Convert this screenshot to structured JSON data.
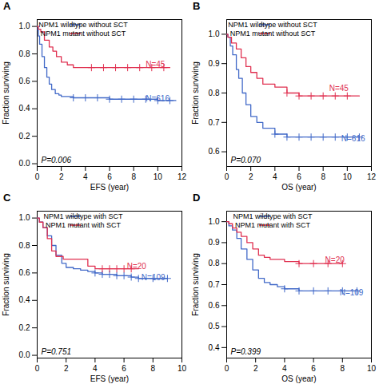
{
  "chart_data": [
    {
      "type": "step",
      "title": "A",
      "xlabel": "EFS (year)",
      "ylabel": "Fraction surviving",
      "xlim": [
        0,
        12
      ],
      "ylim": [
        -0.02,
        1.05
      ],
      "xticks": [
        0,
        2,
        4,
        6,
        8,
        10,
        12
      ],
      "yticks": [
        {
          "value": 0.0,
          "label": "0.0"
        },
        0.2,
        0.4,
        0.6,
        0.8,
        {
          "value": 1.0,
          "label": "1.0"
        }
      ],
      "grid": false,
      "legend": "upper right",
      "series": [
        {
          "name": "NPM1 wildtype without SCT",
          "color": "#4169c8",
          "marker": "+",
          "x": [
            0,
            0.05,
            0.1,
            0.2,
            0.4,
            0.6,
            0.8,
            1.0,
            1.2,
            1.5,
            1.8,
            2.0,
            2.2,
            2.5,
            3.0,
            4.0,
            5.0,
            6.0,
            7.0,
            8.0,
            9.0,
            10.0,
            11.0,
            11.5
          ],
          "values": [
            1.0,
            0.97,
            0.93,
            0.87,
            0.78,
            0.7,
            0.63,
            0.58,
            0.54,
            0.51,
            0.5,
            0.49,
            0.49,
            0.49,
            0.48,
            0.48,
            0.48,
            0.47,
            0.47,
            0.47,
            0.47,
            0.46,
            0.46,
            0.46
          ],
          "censor_x": [
            3.0,
            4.0,
            5.0,
            6.0,
            7.0,
            8.0,
            9.0,
            10.0,
            11.0
          ],
          "censor_values": [
            0.48,
            0.48,
            0.48,
            0.47,
            0.47,
            0.47,
            0.47,
            0.46,
            0.46
          ]
        },
        {
          "name": "NPM1 mutant without SCT",
          "color": "#e03050",
          "marker": "+",
          "x": [
            0,
            0.1,
            0.3,
            0.6,
            1.0,
            1.3,
            1.6,
            2.0,
            2.5,
            3.0,
            3.5,
            4.5,
            5.5,
            6.5,
            7.5,
            8.5,
            9.5,
            10.5,
            11.0
          ],
          "values": [
            1.0,
            0.98,
            0.96,
            0.9,
            0.85,
            0.82,
            0.78,
            0.74,
            0.72,
            0.7,
            0.7,
            0.7,
            0.7,
            0.7,
            0.7,
            0.7,
            0.7,
            0.7,
            0.7
          ],
          "censor_x": [
            4.5,
            5.5,
            6.5,
            7.5,
            8.5,
            9.5,
            10.5
          ],
          "censor_values": [
            0.7,
            0.7,
            0.7,
            0.7,
            0.7,
            0.7,
            0.7
          ]
        }
      ],
      "annotations": [
        {
          "text": "N=45",
          "x": 9.0,
          "y": 0.72,
          "color": "#e03050"
        },
        {
          "text": "N=616",
          "x": 9.0,
          "y": 0.47,
          "color": "#4169c8"
        },
        {
          "text": "P=0.006",
          "position": "bottom left"
        }
      ]
    },
    {
      "type": "step",
      "title": "B",
      "xlabel": "OS (year)",
      "ylabel": "Fraction surviving",
      "xlim": [
        0,
        12
      ],
      "ylim": [
        0.55,
        1.05
      ],
      "xticks": [
        0,
        2,
        4,
        6,
        8,
        10,
        12
      ],
      "yticks": [
        0.6,
        0.7,
        0.8,
        0.9,
        {
          "value": 1.0,
          "label": "1.0"
        }
      ],
      "grid": false,
      "legend": "upper right",
      "series": [
        {
          "name": "NPM1 wildtype without SCT",
          "color": "#4169c8",
          "marker": "+",
          "x": [
            0,
            0.1,
            0.3,
            0.5,
            0.8,
            1.0,
            1.3,
            1.6,
            2.0,
            2.5,
            3.0,
            4.0,
            5.0,
            6.0,
            7.0,
            8.0,
            9.0,
            10.0,
            11.0
          ],
          "values": [
            1.0,
            0.99,
            0.96,
            0.93,
            0.88,
            0.85,
            0.8,
            0.76,
            0.72,
            0.7,
            0.68,
            0.66,
            0.65,
            0.65,
            0.65,
            0.65,
            0.65,
            0.65,
            0.65
          ],
          "censor_x": [
            4.0,
            5.0,
            6.0,
            7.0,
            8.0,
            9.0,
            10.0,
            11.0
          ],
          "censor_values": [
            0.66,
            0.65,
            0.65,
            0.65,
            0.65,
            0.65,
            0.65,
            0.65
          ]
        },
        {
          "name": "NPM1 mutant without SCT",
          "color": "#e03050",
          "marker": "+",
          "x": [
            0,
            0.1,
            0.4,
            0.8,
            1.2,
            1.6,
            2.0,
            2.5,
            3.0,
            4.0,
            5.0,
            6.0,
            7.0,
            8.0,
            9.0,
            10.0,
            11.0
          ],
          "values": [
            1.0,
            0.99,
            0.97,
            0.95,
            0.92,
            0.89,
            0.87,
            0.85,
            0.83,
            0.82,
            0.8,
            0.79,
            0.79,
            0.79,
            0.79,
            0.79,
            0.79
          ],
          "censor_x": [
            5.0,
            6.0,
            7.0,
            8.0,
            9.0,
            10.0
          ],
          "censor_values": [
            0.8,
            0.79,
            0.79,
            0.79,
            0.79,
            0.79
          ]
        }
      ],
      "annotations": [
        {
          "text": "N=45",
          "x": 8.5,
          "y": 0.815,
          "color": "#e03050"
        },
        {
          "text": "N=616",
          "x": 9.5,
          "y": 0.645,
          "color": "#4169c8"
        },
        {
          "text": "P=0.070",
          "position": "bottom left"
        }
      ]
    },
    {
      "type": "step",
      "title": "C",
      "xlabel": "EFS (year)",
      "ylabel": "Fraction surviving",
      "xlim": [
        0,
        10
      ],
      "ylim": [
        -0.02,
        1.05
      ],
      "xticks": [
        0,
        2,
        4,
        6,
        8,
        10
      ],
      "yticks": [
        {
          "value": 0.0,
          "label": "0.0"
        },
        0.2,
        0.4,
        0.6,
        0.8,
        {
          "value": 1.0,
          "label": "1.0"
        }
      ],
      "grid": false,
      "legend": "upper right",
      "series": [
        {
          "name": "NPM1 wildtype with SCT",
          "color": "#4169c8",
          "marker": "+",
          "x": [
            0,
            0.15,
            0.4,
            0.7,
            1.0,
            1.3,
            1.7,
            2.0,
            2.5,
            3.0,
            3.5,
            4.0,
            4.5,
            5.0,
            5.5,
            6.0,
            6.5,
            7.0,
            7.5,
            8.0,
            9.0
          ],
          "values": [
            1.0,
            0.97,
            0.93,
            0.87,
            0.8,
            0.73,
            0.67,
            0.64,
            0.63,
            0.62,
            0.61,
            0.6,
            0.59,
            0.59,
            0.58,
            0.58,
            0.57,
            0.56,
            0.56,
            0.56,
            0.56
          ],
          "censor_x": [
            4.0,
            4.5,
            5.0,
            5.5,
            6.0,
            6.5,
            7.0,
            8.0,
            9.0
          ],
          "censor_values": [
            0.6,
            0.59,
            0.59,
            0.58,
            0.58,
            0.57,
            0.56,
            0.56,
            0.56
          ]
        },
        {
          "name": "NPM1 mutant with SCT",
          "color": "#e03050",
          "marker": "+",
          "x": [
            0,
            0.15,
            0.4,
            0.7,
            1.0,
            1.3,
            1.8,
            2.5,
            3.5,
            4.0,
            4.5,
            5.0,
            5.5,
            6.0,
            6.5,
            7.0
          ],
          "values": [
            1.0,
            0.97,
            0.93,
            0.85,
            0.76,
            0.72,
            0.7,
            0.7,
            0.65,
            0.63,
            0.63,
            0.63,
            0.63,
            0.63,
            0.63,
            0.63
          ],
          "censor_x": [
            4.5,
            5.0,
            5.5,
            6.0,
            6.5
          ],
          "censor_values": [
            0.63,
            0.63,
            0.63,
            0.63,
            0.63
          ]
        }
      ],
      "annotations": [
        {
          "text": "N=20",
          "x": 6.2,
          "y": 0.645,
          "color": "#e03050"
        },
        {
          "text": "N=109",
          "x": 7.2,
          "y": 0.565,
          "color": "#4169c8"
        },
        {
          "text": "P=0.751",
          "position": "bottom left"
        }
      ]
    },
    {
      "type": "step",
      "title": "D",
      "xlabel": "OS (year)",
      "ylabel": "Fraction surviving",
      "xlim": [
        0,
        10
      ],
      "ylim": [
        0.35,
        1.05
      ],
      "xticks": [
        0,
        2,
        4,
        6,
        8,
        10
      ],
      "yticks": [
        0.4,
        0.5,
        0.6,
        0.7,
        0.8,
        0.9,
        {
          "value": 1.0,
          "label": "1.0"
        }
      ],
      "grid": false,
      "legend": "upper right",
      "series": [
        {
          "name": "NPM1 wildtype with SCT",
          "color": "#4169c8",
          "marker": "+",
          "x": [
            0,
            0.15,
            0.4,
            0.7,
            1.0,
            1.4,
            1.8,
            2.2,
            2.6,
            3.0,
            3.5,
            4.0,
            5.0,
            6.0,
            7.0,
            8.0,
            9.0
          ],
          "values": [
            1.0,
            0.98,
            0.96,
            0.92,
            0.87,
            0.82,
            0.77,
            0.73,
            0.71,
            0.7,
            0.69,
            0.68,
            0.67,
            0.67,
            0.67,
            0.67,
            0.67
          ],
          "censor_x": [
            4.0,
            5.0,
            6.0,
            7.0,
            8.0,
            9.0
          ],
          "censor_values": [
            0.68,
            0.67,
            0.67,
            0.67,
            0.67,
            0.67
          ]
        },
        {
          "name": "NPM1 mutant with SCT",
          "color": "#e03050",
          "marker": "+",
          "x": [
            0,
            0.15,
            0.4,
            0.7,
            1.0,
            1.4,
            1.8,
            2.2,
            2.6,
            3.0,
            4.0,
            5.0,
            6.0,
            7.0,
            8.0
          ],
          "values": [
            1.0,
            0.99,
            0.97,
            0.95,
            0.93,
            0.9,
            0.87,
            0.84,
            0.83,
            0.82,
            0.81,
            0.8,
            0.8,
            0.8,
            0.8
          ],
          "censor_x": [
            5.0,
            6.0,
            7.0,
            8.0
          ],
          "censor_values": [
            0.8,
            0.8,
            0.8,
            0.8
          ]
        }
      ],
      "annotations": [
        {
          "text": "N=20",
          "x": 6.8,
          "y": 0.815,
          "color": "#e03050"
        },
        {
          "text": "N=109",
          "x": 7.8,
          "y": 0.66,
          "color": "#4169c8"
        },
        {
          "text": "P=0.399",
          "position": "bottom left"
        }
      ]
    }
  ]
}
